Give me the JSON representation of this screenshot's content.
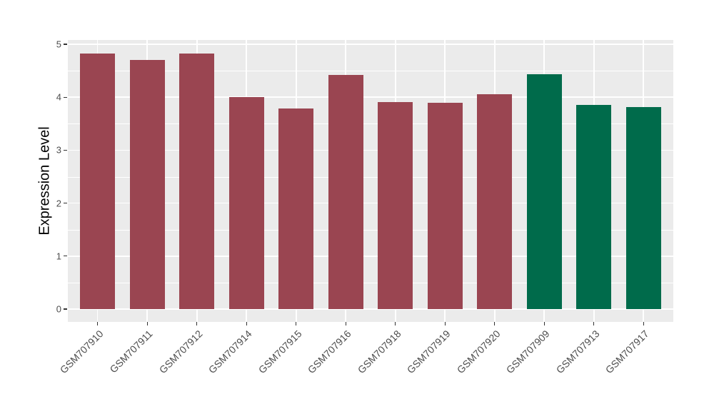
{
  "figure": {
    "background_color": "#FFFFFF"
  },
  "chart_data": {
    "type": "bar",
    "title": "",
    "xlabel": "",
    "ylabel": "Expression Level",
    "ylim": [
      0,
      5
    ],
    "yticks": [
      0,
      1,
      2,
      3,
      4,
      5
    ],
    "grid": true,
    "legend_position": "none",
    "panel_background_color": "#EBEBEB",
    "grid_color": "#FFFFFF",
    "tick_label_color": "#4D4D4D",
    "axis_title_color": "#000000",
    "bar_color_red": "#9A4551",
    "bar_color_green": "#006B4B",
    "categories": [
      "GSM707910",
      "GSM707911",
      "GSM707912",
      "GSM707914",
      "GSM707915",
      "GSM707916",
      "GSM707918",
      "GSM707919",
      "GSM707920",
      "GSM707909",
      "GSM707913",
      "GSM707917"
    ],
    "values": [
      4.82,
      4.7,
      4.82,
      4.0,
      3.79,
      4.42,
      3.91,
      3.89,
      4.05,
      4.44,
      3.86,
      3.82
    ],
    "bar_colors": [
      "#9A4551",
      "#9A4551",
      "#9A4551",
      "#9A4551",
      "#9A4551",
      "#9A4551",
      "#9A4551",
      "#9A4551",
      "#9A4551",
      "#006B4B",
      "#006B4B",
      "#006B4B"
    ]
  }
}
